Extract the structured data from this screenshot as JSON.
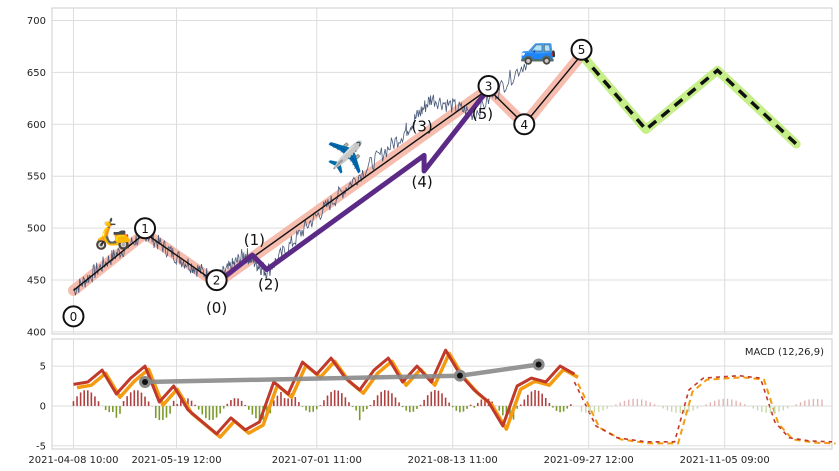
{
  "chart_data": [
    {
      "type": "line",
      "panel": "price",
      "ylim": [
        398,
        712
      ],
      "yticks": [
        400,
        450,
        500,
        550,
        600,
        650,
        700
      ],
      "xlim": [
        -0.3,
        10.6
      ],
      "grid": true,
      "price_path": [
        [
          0,
          440
        ],
        [
          0.5,
          470
        ],
        [
          1,
          495
        ],
        [
          1.5,
          470
        ],
        [
          2,
          450
        ],
        [
          2.4,
          475
        ],
        [
          2.7,
          458
        ],
        [
          3.3,
          505
        ],
        [
          3.9,
          545
        ],
        [
          4.6,
          590
        ],
        [
          5,
          625
        ],
        [
          5.6,
          610
        ],
        [
          6.4,
          665
        ]
      ],
      "impulse_waves": [
        {
          "label": "0",
          "x": 0,
          "y": 440
        },
        {
          "label": "1",
          "x": 1,
          "y": 495
        },
        {
          "label": "2",
          "x": 2,
          "y": 447
        },
        {
          "label": "3",
          "x": 5.8,
          "y": 634
        },
        {
          "label": "4",
          "x": 6.3,
          "y": 600
        },
        {
          "label": "5",
          "x": 7.1,
          "y": 667
        }
      ],
      "sub_waves": [
        {
          "label": "(0)",
          "x": 2,
          "y": 447
        },
        {
          "label": "(1)",
          "x": 2.5,
          "y": 474
        },
        {
          "label": "(2)",
          "x": 2.7,
          "y": 460
        },
        {
          "label": "(3)",
          "x": 4.9,
          "y": 570
        },
        {
          "label": "(4)",
          "x": 4.9,
          "y": 555
        },
        {
          "label": "(5)",
          "x": 5.8,
          "y": 634
        }
      ],
      "forecast": [
        [
          7.1,
          667
        ],
        [
          8.0,
          595
        ],
        [
          9.0,
          652
        ],
        [
          10.1,
          581
        ]
      ],
      "emojis": [
        {
          "name": "scooter-icon",
          "glyph": "🛵",
          "x": 0.55,
          "y": 495
        },
        {
          "name": "airplane-icon",
          "glyph": "✈️",
          "x": 3.8,
          "y": 568
        },
        {
          "name": "car-icon",
          "glyph": "🚙",
          "x": 6.5,
          "y": 673
        }
      ]
    },
    {
      "type": "line",
      "panel": "macd",
      "label": "MACD (12,26,9)",
      "ylim": [
        -5.4,
        8.4
      ],
      "yticks": [
        -5,
        0,
        5
      ],
      "xticks": [
        {
          "x": 0,
          "label": "2021-04-08 10:00"
        },
        {
          "x": 1.44,
          "label": "2021-05-19 12:00"
        },
        {
          "x": 3.4,
          "label": "2021-07-01 11:00"
        },
        {
          "x": 5.3,
          "label": "2021-08-13 11:00"
        },
        {
          "x": 7.2,
          "label": "2021-09-27 12:00"
        },
        {
          "x": 9.1,
          "label": "2021-11-05 09:00"
        }
      ],
      "macd": [
        [
          0,
          2.7
        ],
        [
          0.2,
          3.0
        ],
        [
          0.4,
          4.5
        ],
        [
          0.6,
          1.5
        ],
        [
          0.8,
          3.5
        ],
        [
          1.0,
          5.0
        ],
        [
          1.2,
          0.5
        ],
        [
          1.4,
          2.5
        ],
        [
          1.6,
          -0.5
        ],
        [
          1.8,
          -2.0
        ],
        [
          2.0,
          -3.5
        ],
        [
          2.2,
          -1.5
        ],
        [
          2.4,
          -3.0
        ],
        [
          2.6,
          -2.0
        ],
        [
          2.8,
          3.0
        ],
        [
          3.0,
          1.5
        ],
        [
          3.2,
          5.5
        ],
        [
          3.4,
          4.0
        ],
        [
          3.6,
          6.0
        ],
        [
          3.8,
          3.5
        ],
        [
          4.0,
          2.0
        ],
        [
          4.2,
          4.5
        ],
        [
          4.4,
          6.0
        ],
        [
          4.6,
          3.0
        ],
        [
          4.8,
          5.0
        ],
        [
          5.0,
          3.0
        ],
        [
          5.2,
          7.0
        ],
        [
          5.4,
          4.0
        ],
        [
          5.6,
          2.0
        ],
        [
          5.8,
          0.5
        ],
        [
          6.0,
          -2.5
        ],
        [
          6.2,
          2.5
        ],
        [
          6.4,
          3.5
        ],
        [
          6.6,
          3.0
        ],
        [
          6.8,
          5.0
        ],
        [
          7.0,
          4.0
        ]
      ],
      "forecast_macd": [
        [
          7.0,
          3.0
        ],
        [
          7.3,
          -2.5
        ],
        [
          7.6,
          -4.0
        ],
        [
          8.0,
          -4.5
        ],
        [
          8.4,
          -4.5
        ],
        [
          8.6,
          2.0
        ],
        [
          8.8,
          3.5
        ],
        [
          9.3,
          3.8
        ],
        [
          9.6,
          3.5
        ],
        [
          9.8,
          -2.0
        ],
        [
          10.0,
          -4.0
        ],
        [
          10.3,
          -4.4
        ],
        [
          10.6,
          -4.5
        ]
      ],
      "divergence": [
        [
          1.0,
          3.0
        ],
        [
          5.4,
          3.8
        ],
        [
          6.5,
          5.2
        ]
      ]
    }
  ]
}
